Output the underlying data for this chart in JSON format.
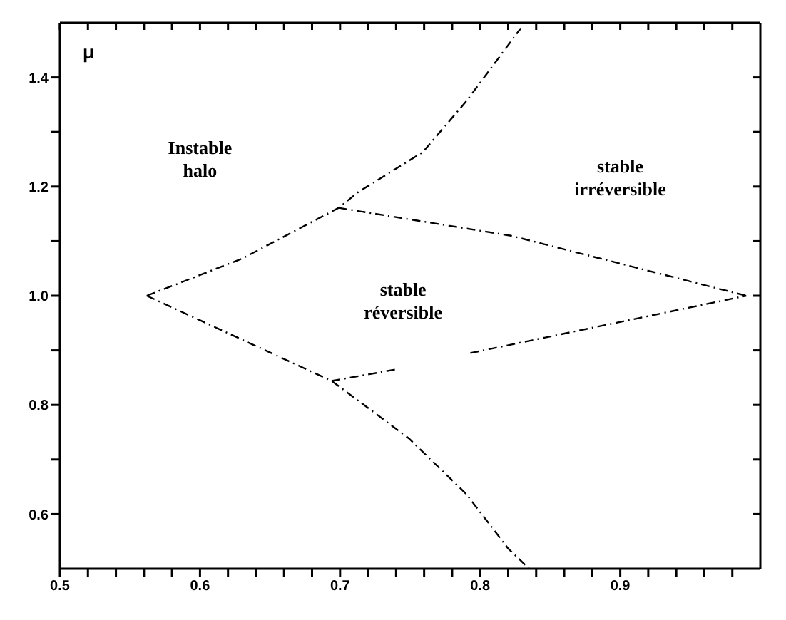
{
  "chart_data": {
    "type": "line",
    "ylabel": "μ",
    "xlim": [
      0.5,
      1.0
    ],
    "ylim": [
      0.5,
      1.5
    ],
    "xticks": [
      0.5,
      {
        "value": 0.52,
        "label": null
      },
      {
        "value": 0.54,
        "label": null
      },
      {
        "value": 0.56,
        "label": null
      },
      {
        "value": 0.58,
        "label": null
      },
      0.6,
      {
        "value": 0.62,
        "label": null
      },
      {
        "value": 0.64,
        "label": null
      },
      {
        "value": 0.66,
        "label": null
      },
      {
        "value": 0.68,
        "label": null
      },
      0.7,
      {
        "value": 0.72,
        "label": null
      },
      {
        "value": 0.74,
        "label": null
      },
      {
        "value": 0.76,
        "label": null
      },
      {
        "value": 0.78,
        "label": null
      },
      0.8,
      {
        "value": 0.82,
        "label": null
      },
      {
        "value": 0.84,
        "label": null
      },
      {
        "value": 0.86,
        "label": null
      },
      {
        "value": 0.88,
        "label": null
      },
      0.9,
      {
        "value": 0.92,
        "label": null
      },
      {
        "value": 0.94,
        "label": null
      },
      {
        "value": 0.96,
        "label": null
      },
      {
        "value": 0.98,
        "label": null
      }
    ],
    "yticks": [
      0.6,
      {
        "value": 0.7,
        "label": null
      },
      0.8,
      {
        "value": 0.9,
        "label": null
      },
      {
        "value": 1.0,
        "label": "1.0"
      },
      {
        "value": 1.1,
        "label": null
      },
      1.2,
      {
        "value": 1.3,
        "label": null
      },
      1.4
    ],
    "marker": "none",
    "line_style": "dashed",
    "series": [
      {
        "color": "#000000",
        "x": [
          0.562,
          0.63,
          0.699,
          0.713,
          0.759,
          0.79,
          0.829
        ],
        "values": [
          1.0,
          1.068,
          1.161,
          1.19,
          1.263,
          1.356,
          1.49
        ]
      },
      {
        "color": "#000000",
        "x": [
          0.699,
          0.822,
          0.99
        ],
        "values": [
          1.161,
          1.11,
          1.0
        ]
      },
      {
        "color": "#000000",
        "x": [
          0.562,
          0.694,
          0.749,
          0.79,
          0.82,
          0.835
        ],
        "values": [
          1.0,
          0.844,
          0.739,
          0.637,
          0.537,
          0.5
        ]
      },
      {
        "color": "#000000",
        "x": [
          0.694,
          0.742
        ],
        "values": [
          0.844,
          0.866
        ]
      },
      {
        "color": "#000000",
        "x": [
          0.793,
          0.99
        ],
        "values": [
          0.895,
          1.0
        ]
      }
    ],
    "annotations": [
      "Instable\nhalo",
      "stable\nirréversible",
      "stable\nréversible"
    ]
  }
}
